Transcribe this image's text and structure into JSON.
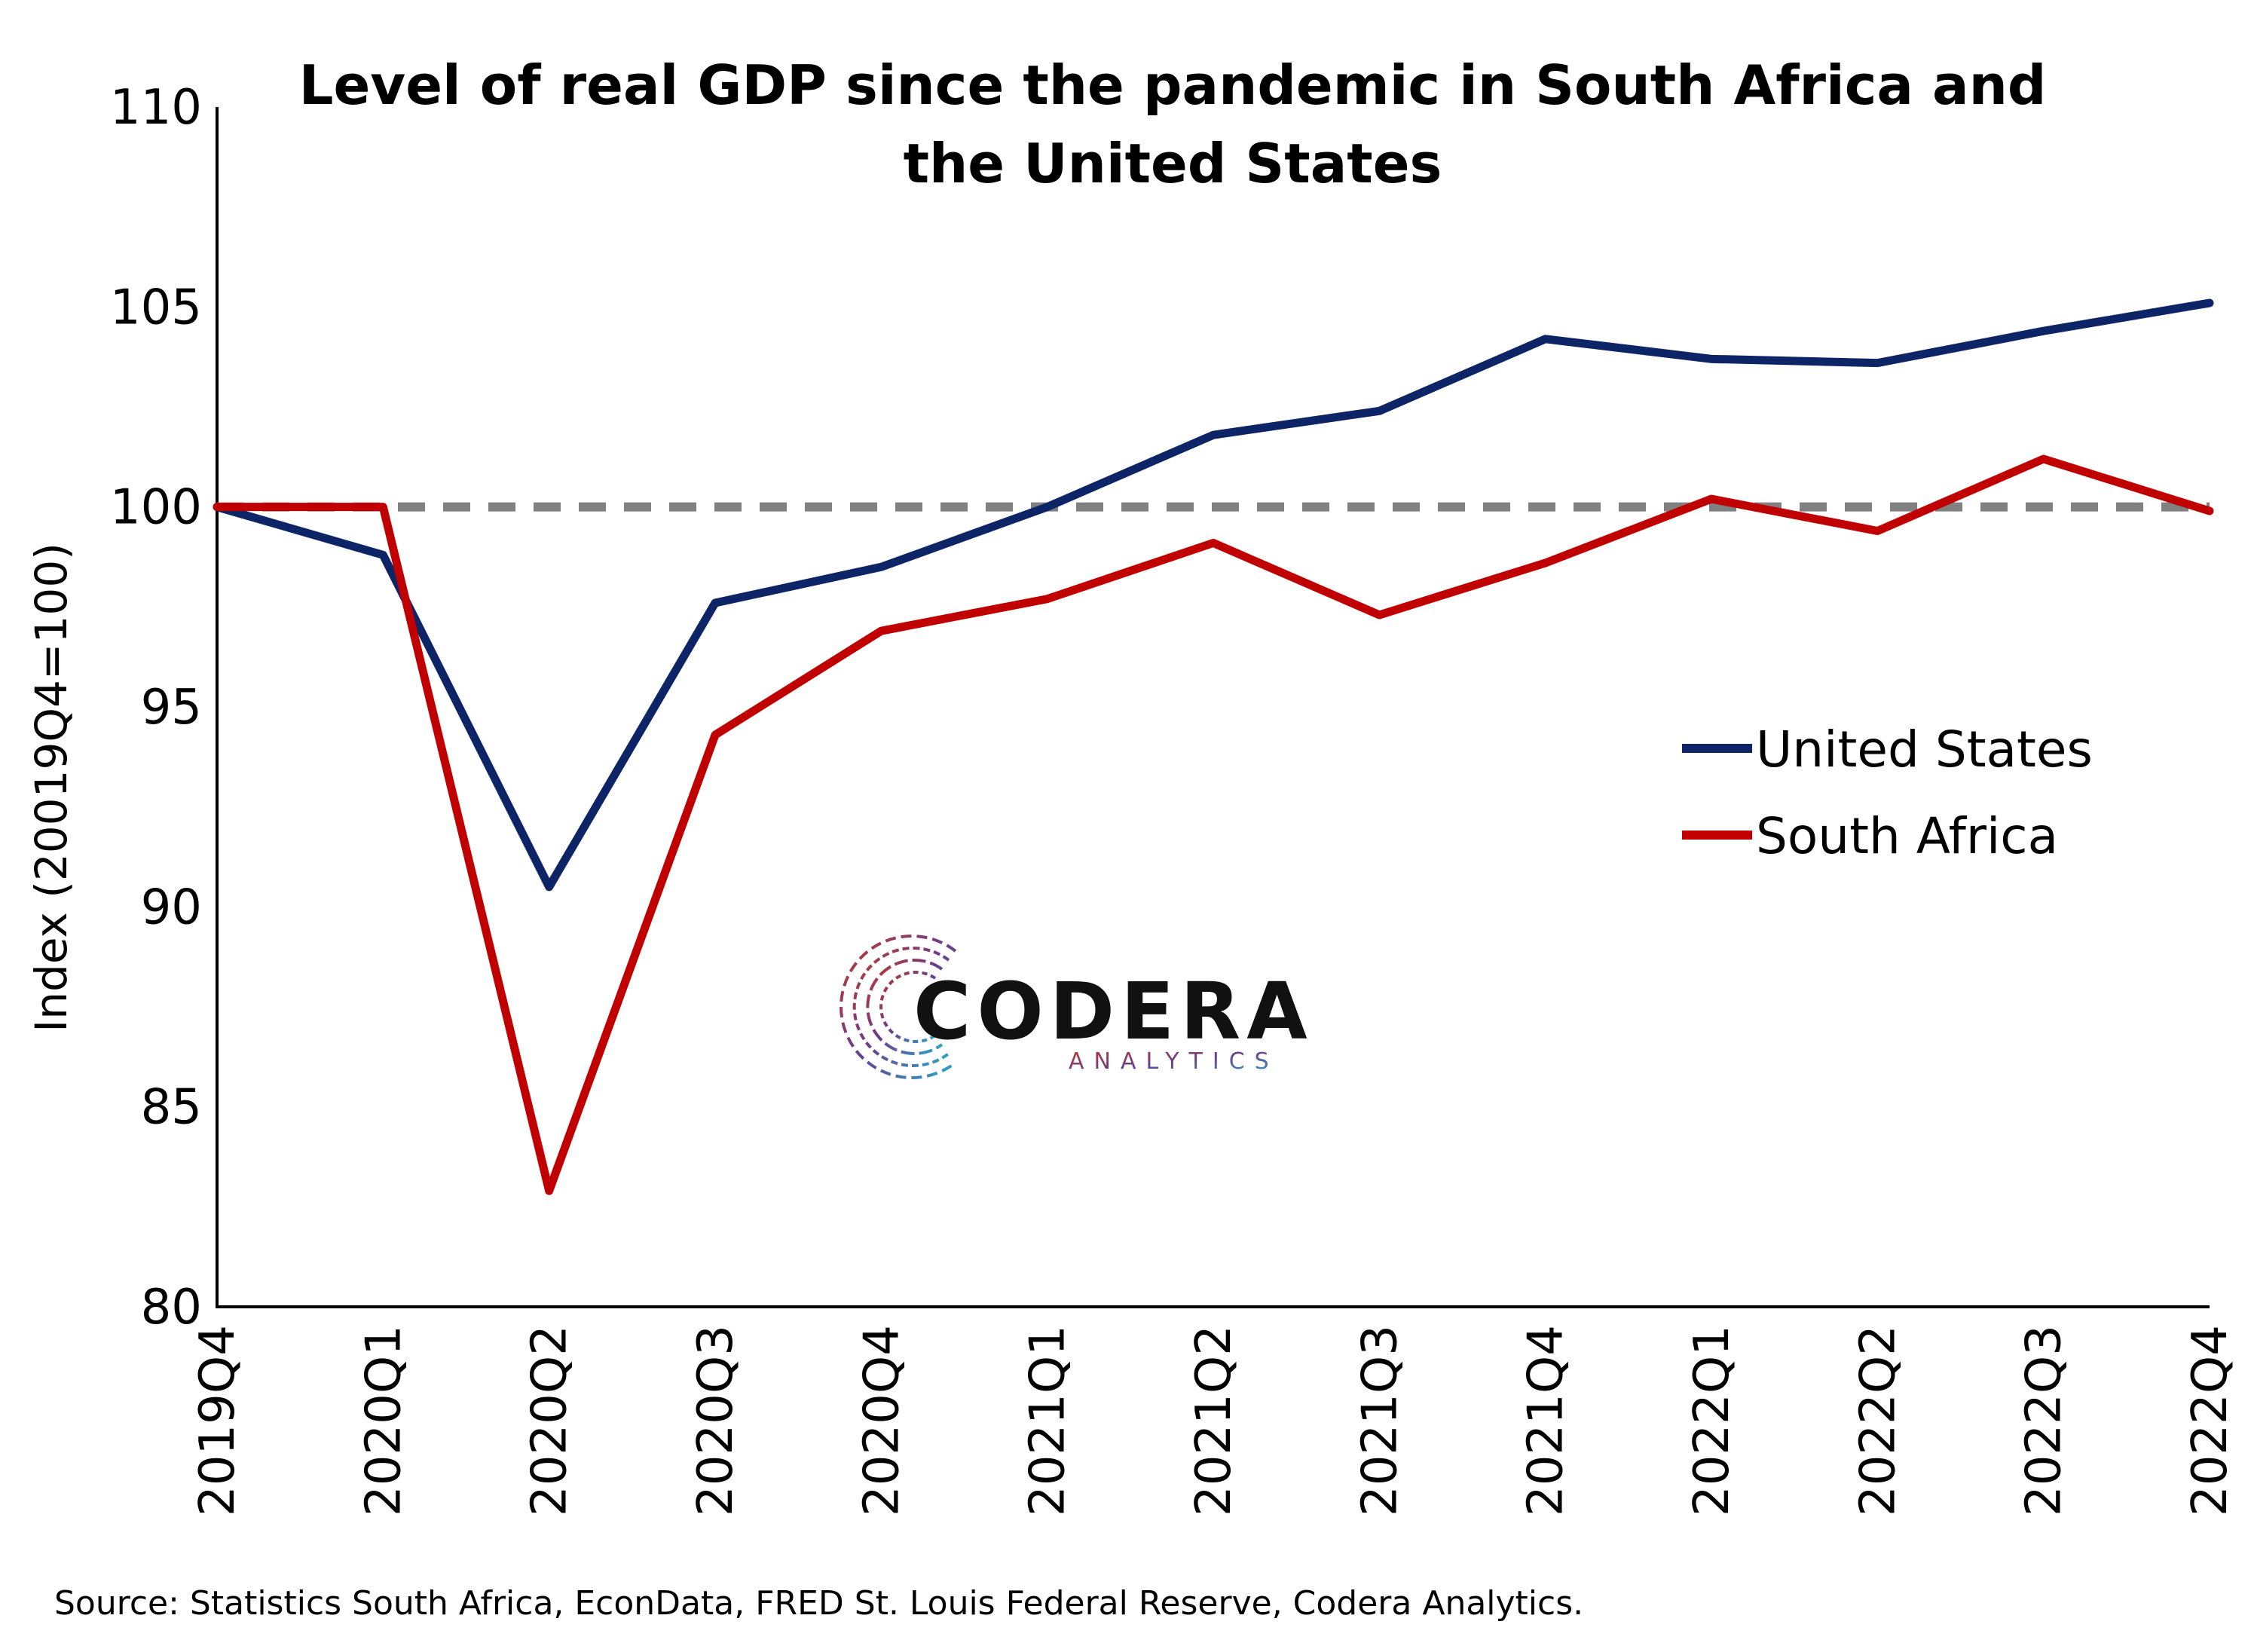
{
  "chart_data": {
    "type": "line",
    "title": "Level of real GDP since the pandemic in South Africa and the United States",
    "title_lines": [
      "Level of real GDP since the pandemic in South Africa and",
      "the United States"
    ],
    "ylabel": "Index (20019Q4=100)",
    "xlabel": "",
    "ylim": [
      80,
      110
    ],
    "yticks": [
      80,
      85,
      90,
      95,
      100,
      105,
      110
    ],
    "categories": [
      "2019Q4",
      "2020Q1",
      "2020Q2",
      "2020Q3",
      "2020Q4",
      "2021Q1",
      "2021Q2",
      "2021Q3",
      "2021Q4",
      "2022Q1",
      "2022Q2",
      "2022Q3",
      "2022Q4"
    ],
    "series": [
      {
        "name": "United States",
        "color": "#0d2466",
        "values": [
          100.0,
          98.8,
          90.5,
          97.6,
          98.5,
          100.0,
          101.8,
          102.4,
          104.2,
          103.7,
          103.6,
          104.4,
          105.1
        ]
      },
      {
        "name": "South Africa",
        "color": "#c00000",
        "values": [
          100.0,
          100.0,
          82.9,
          94.3,
          96.9,
          97.7,
          99.1,
          97.3,
          98.6,
          100.2,
          99.4,
          101.2,
          99.9
        ]
      }
    ],
    "reference_line": {
      "value": 100,
      "style": "dashed",
      "color": "#808080"
    },
    "legend_position": "right-middle",
    "grid": false
  },
  "logo": {
    "name": "CODERA",
    "tagline": "ANALYTICS"
  },
  "source": "Source: Statistics South Africa, EconData, FRED St. Louis Federal Reserve, Codera Analytics."
}
